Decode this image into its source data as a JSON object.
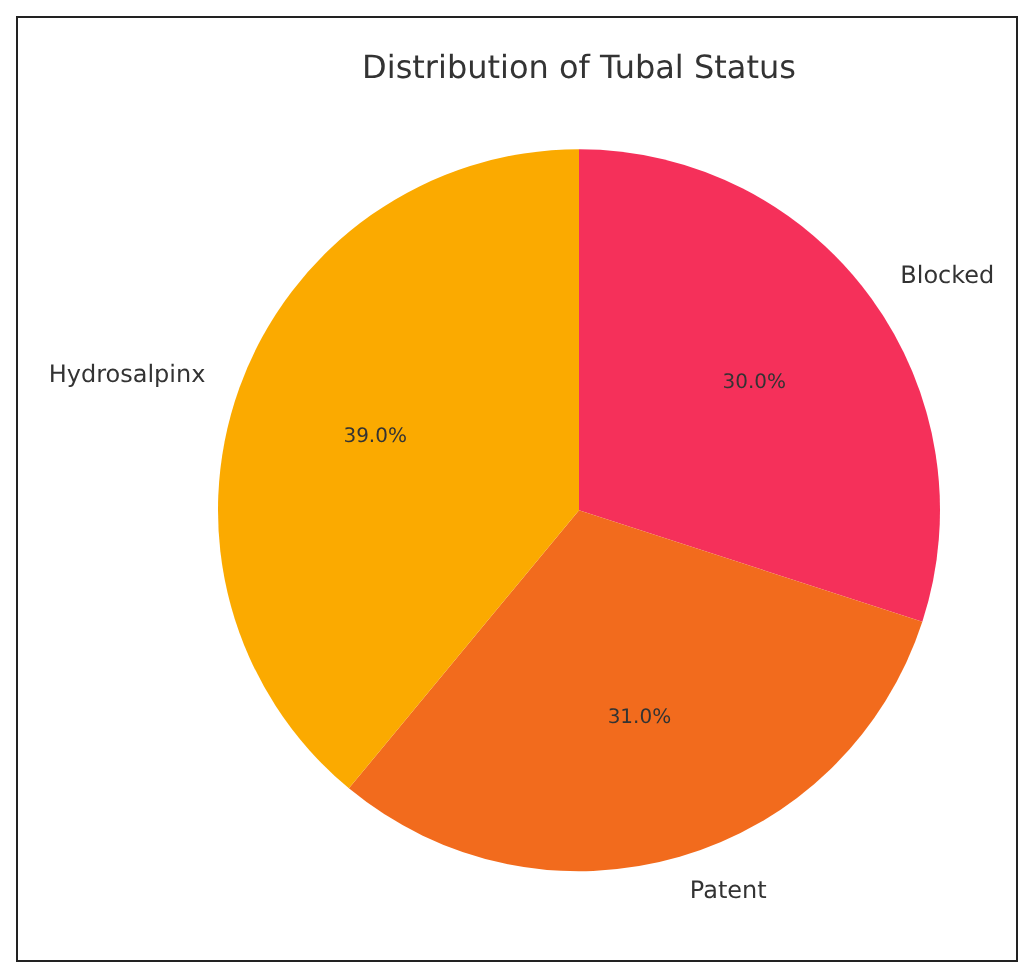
{
  "chart_data": {
    "type": "pie",
    "title": "Distribution of Tubal Status",
    "categories": [
      "Blocked",
      "Patent",
      "Hydrosalpinx"
    ],
    "values": [
      30,
      31,
      39
    ],
    "colors": [
      "#f5305a",
      "#f26b1d",
      "#fbaa00"
    ],
    "value_labels": [
      "30.0%",
      "31.0%",
      "39.0%"
    ],
    "legend": false
  }
}
